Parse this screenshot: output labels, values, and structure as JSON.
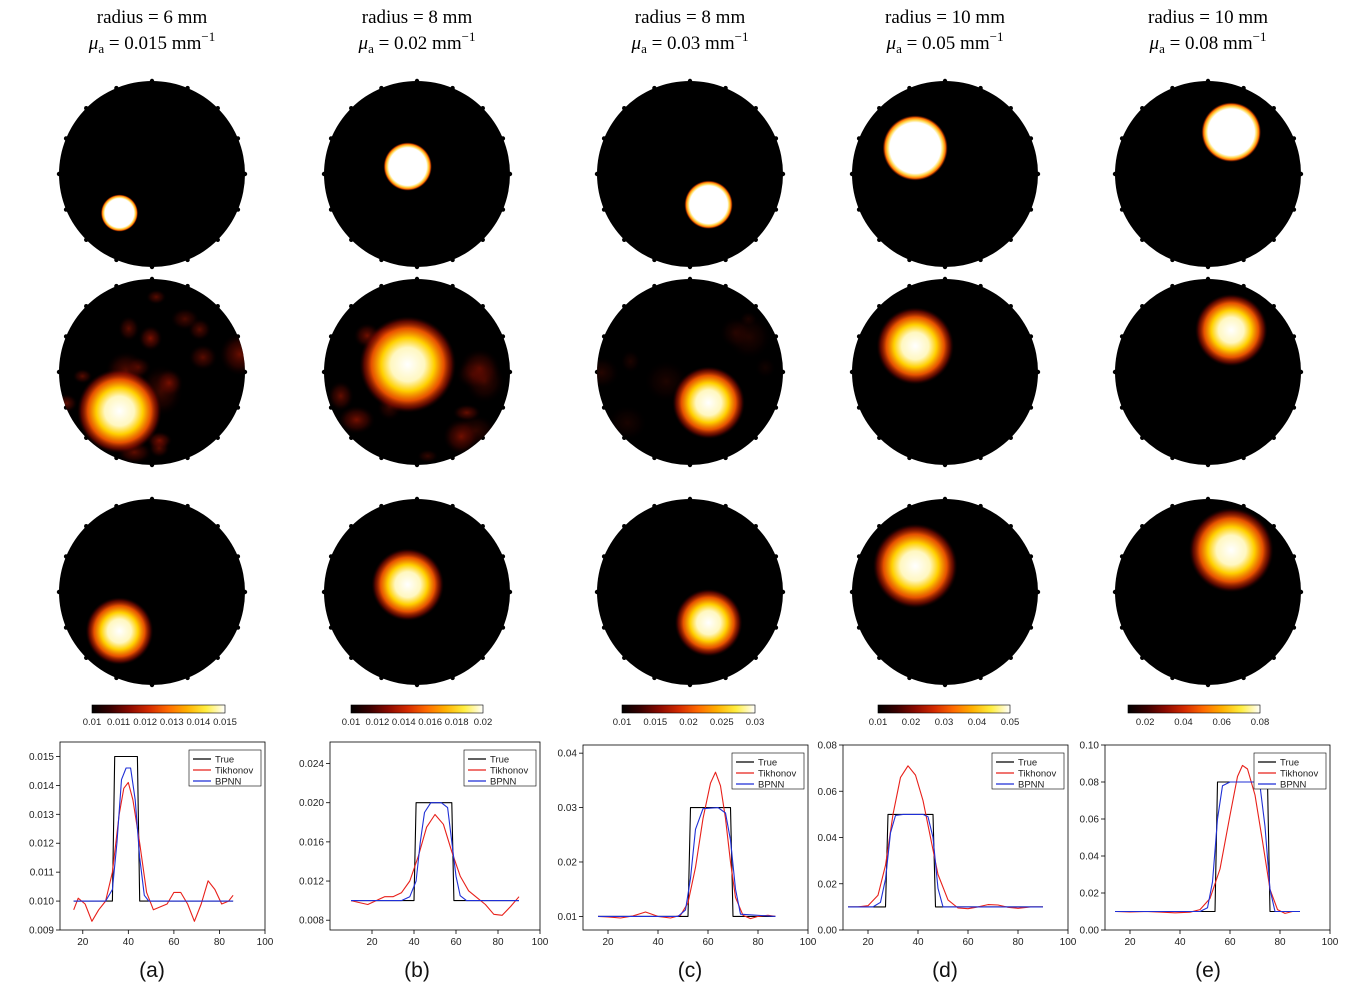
{
  "figure": {
    "colormap": [
      "#000000",
      "#3a0000",
      "#8c0a00",
      "#d42a00",
      "#ff6a00",
      "#ffb000",
      "#ffee40",
      "#ffffff"
    ],
    "row_labels": [],
    "panels": [
      {
        "label": "(a)",
        "title_radius": "radius = 6 mm",
        "title_mu_symbol": "μ",
        "title_mu_sub": "a",
        "title_mu_value": " = 0.015 mm",
        "title_mu_exp": "−1",
        "colorbar_ticks": [
          "0.01",
          "0.011",
          "0.012",
          "0.013",
          "0.014",
          "0.015"
        ]
      },
      {
        "label": "(b)",
        "title_radius": "radius = 8 mm",
        "title_mu_symbol": "μ",
        "title_mu_sub": "a",
        "title_mu_value": " = 0.02 mm",
        "title_mu_exp": "−1",
        "colorbar_ticks": [
          "0.01",
          "0.012",
          "0.014",
          "0.016",
          "0.018",
          "0.02"
        ]
      },
      {
        "label": "(c)",
        "title_radius": "radius = 8 mm",
        "title_mu_symbol": "μ",
        "title_mu_sub": "a",
        "title_mu_value": " = 0.03 mm",
        "title_mu_exp": "−1",
        "colorbar_ticks": [
          "0.01",
          "0.015",
          "0.02",
          "0.025",
          "0.03"
        ]
      },
      {
        "label": "(d)",
        "title_radius": "radius = 10 mm",
        "title_mu_symbol": "μ",
        "title_mu_sub": "a",
        "title_mu_value": " = 0.05 mm",
        "title_mu_exp": "−1",
        "colorbar_ticks": [
          "0.01",
          "0.02",
          "0.03",
          "0.04",
          "0.05"
        ]
      },
      {
        "label": "(e)",
        "title_radius": "radius = 10 mm",
        "title_mu_symbol": "μ",
        "title_mu_sub": "a",
        "title_mu_value": " = 0.08 mm",
        "title_mu_exp": "−1",
        "colorbar_ticks": [
          "0.02",
          "0.04",
          "0.06",
          "0.08"
        ]
      }
    ]
  },
  "chart_data": [
    {
      "type": "line",
      "panel": "(a)",
      "xlim": [
        10,
        100
      ],
      "ylim": [
        0.009,
        0.0155
      ],
      "xticks": [
        "20",
        "40",
        "60",
        "80",
        "100"
      ],
      "yticks": [
        "0.009",
        "0.010",
        "0.011",
        "0.012",
        "0.013",
        "0.014",
        "0.015"
      ],
      "legend": [
        "True",
        "Tikhonov",
        "BPNN"
      ],
      "legend_position": "top-right",
      "series": [
        {
          "name": "True",
          "color": "#000000",
          "x": [
            16,
            33,
            34,
            44,
            45,
            86
          ],
          "y": [
            0.01,
            0.01,
            0.015,
            0.015,
            0.01,
            0.01
          ]
        },
        {
          "name": "Tikhonov",
          "color": "#e8201a",
          "x": [
            16,
            18,
            21,
            24,
            27,
            30,
            33,
            36,
            38,
            40,
            42,
            45,
            48,
            51,
            54,
            57,
            60,
            63,
            66,
            69,
            72,
            75,
            78,
            81,
            84,
            86
          ],
          "y": [
            0.0097,
            0.0101,
            0.0099,
            0.0093,
            0.0097,
            0.01,
            0.011,
            0.013,
            0.0139,
            0.0141,
            0.0135,
            0.012,
            0.0103,
            0.0097,
            0.0098,
            0.0099,
            0.0103,
            0.0103,
            0.0099,
            0.0093,
            0.0099,
            0.0107,
            0.0104,
            0.0099,
            0.01,
            0.0102
          ]
        },
        {
          "name": "BPNN",
          "color": "#1f2fd6",
          "x": [
            16,
            30,
            33,
            35,
            37,
            39,
            41,
            43,
            45,
            47,
            49,
            86
          ],
          "y": [
            0.01,
            0.01,
            0.0104,
            0.012,
            0.0142,
            0.0146,
            0.0146,
            0.0135,
            0.0115,
            0.0102,
            0.01,
            0.01
          ]
        }
      ]
    },
    {
      "type": "line",
      "panel": "(b)",
      "xlim": [
        0,
        100
      ],
      "ylim": [
        0.007,
        0.0262
      ],
      "xticks": [
        "20",
        "40",
        "60",
        "80",
        "100"
      ],
      "yticks": [
        "0.008",
        "0.012",
        "0.016",
        "0.020",
        "0.024"
      ],
      "legend": [
        "True",
        "Tikhonov",
        "BPNN"
      ],
      "legend_position": "top-right",
      "series": [
        {
          "name": "True",
          "color": "#000000",
          "x": [
            10,
            40,
            41,
            58,
            59,
            90
          ],
          "y": [
            0.01,
            0.01,
            0.02,
            0.02,
            0.01,
            0.01
          ]
        },
        {
          "name": "Tikhonov",
          "color": "#e8201a",
          "x": [
            10,
            14,
            18,
            22,
            26,
            30,
            34,
            38,
            42,
            46,
            50,
            54,
            58,
            62,
            66,
            70,
            74,
            78,
            82,
            86,
            90
          ],
          "y": [
            0.01,
            0.0098,
            0.0096,
            0.01,
            0.0104,
            0.0104,
            0.0108,
            0.012,
            0.0145,
            0.0175,
            0.0188,
            0.0178,
            0.015,
            0.0125,
            0.011,
            0.0103,
            0.0096,
            0.0086,
            0.0085,
            0.0094,
            0.0104
          ]
        },
        {
          "name": "BPNN",
          "color": "#1f2fd6",
          "x": [
            10,
            34,
            38,
            41,
            43,
            45,
            48,
            53,
            56,
            58,
            60,
            62,
            65,
            90
          ],
          "y": [
            0.01,
            0.01,
            0.0104,
            0.012,
            0.016,
            0.019,
            0.02,
            0.02,
            0.0195,
            0.016,
            0.0125,
            0.0105,
            0.01,
            0.01
          ]
        }
      ]
    },
    {
      "type": "line",
      "panel": "(c)",
      "xlim": [
        10,
        100
      ],
      "ylim": [
        0.0075,
        0.0415
      ],
      "xticks": [
        "20",
        "40",
        "60",
        "80",
        "100"
      ],
      "yticks": [
        "0.01",
        "0.02",
        "0.03",
        "0.04"
      ],
      "legend": [
        "True",
        "Tikhonov",
        "BPNN"
      ],
      "legend_position": "top-right",
      "series": [
        {
          "name": "True",
          "color": "#000000",
          "x": [
            16,
            52,
            53,
            69,
            70,
            87
          ],
          "y": [
            0.01,
            0.01,
            0.03,
            0.03,
            0.01,
            0.01
          ]
        },
        {
          "name": "Tikhonov",
          "color": "#e8201a",
          "x": [
            16,
            20,
            25,
            30,
            35,
            40,
            45,
            49,
            52,
            55,
            58,
            61,
            63,
            65,
            67,
            69,
            71,
            74,
            77,
            80,
            84,
            87
          ],
          "y": [
            0.01,
            0.0099,
            0.0097,
            0.0101,
            0.0108,
            0.01,
            0.0097,
            0.0102,
            0.0125,
            0.019,
            0.028,
            0.0345,
            0.0365,
            0.034,
            0.028,
            0.02,
            0.0135,
            0.0102,
            0.0096,
            0.01,
            0.0102,
            0.01
          ]
        },
        {
          "name": "BPNN",
          "color": "#1f2fd6",
          "x": [
            16,
            48,
            51,
            53,
            55,
            58,
            64,
            67,
            69,
            71,
            73,
            87
          ],
          "y": [
            0.01,
            0.01,
            0.0112,
            0.017,
            0.026,
            0.0298,
            0.03,
            0.029,
            0.024,
            0.015,
            0.0104,
            0.01
          ]
        }
      ]
    },
    {
      "type": "line",
      "panel": "(d)",
      "xlim": [
        10,
        100
      ],
      "ylim": [
        0.0,
        0.08
      ],
      "xticks": [
        "20",
        "40",
        "60",
        "80",
        "100"
      ],
      "yticks": [
        "0.00",
        "0.02",
        "0.04",
        "0.06",
        "0.08"
      ],
      "legend": [
        "True",
        "Tikhonov",
        "BPNN"
      ],
      "legend_position": "top-right",
      "series": [
        {
          "name": "True",
          "color": "#000000",
          "x": [
            12,
            27,
            28,
            46,
            47,
            90
          ],
          "y": [
            0.01,
            0.01,
            0.05,
            0.05,
            0.01,
            0.01
          ]
        },
        {
          "name": "Tikhonov",
          "color": "#e8201a",
          "x": [
            12,
            16,
            20,
            24,
            27,
            30,
            33,
            36,
            39,
            42,
            45,
            48,
            52,
            56,
            60,
            64,
            68,
            72,
            76,
            80,
            85,
            90
          ],
          "y": [
            0.01,
            0.01,
            0.0105,
            0.015,
            0.028,
            0.05,
            0.066,
            0.071,
            0.067,
            0.056,
            0.04,
            0.024,
            0.013,
            0.0095,
            0.0092,
            0.01,
            0.011,
            0.0108,
            0.0098,
            0.0094,
            0.01,
            0.01
          ]
        },
        {
          "name": "BPNN",
          "color": "#1f2fd6",
          "x": [
            12,
            22,
            25,
            27,
            29,
            31,
            34,
            42,
            44,
            46,
            48,
            50,
            90
          ],
          "y": [
            0.01,
            0.01,
            0.012,
            0.022,
            0.042,
            0.0495,
            0.05,
            0.05,
            0.049,
            0.04,
            0.018,
            0.01,
            0.01
          ]
        }
      ]
    },
    {
      "type": "line",
      "panel": "(e)",
      "xlim": [
        10,
        100
      ],
      "ylim": [
        0.0,
        0.1
      ],
      "xticks": [
        "20",
        "40",
        "60",
        "80",
        "100"
      ],
      "yticks": [
        "0.00",
        "0.02",
        "0.04",
        "0.06",
        "0.08",
        "0.10"
      ],
      "legend": [
        "True",
        "Tikhonov",
        "BPNN"
      ],
      "legend_position": "top-right",
      "series": [
        {
          "name": "True",
          "color": "#000000",
          "x": [
            14,
            54,
            55,
            75,
            76,
            88
          ],
          "y": [
            0.01,
            0.01,
            0.08,
            0.08,
            0.01,
            0.01
          ]
        },
        {
          "name": "Tikhonov",
          "color": "#e8201a",
          "x": [
            14,
            20,
            26,
            32,
            38,
            44,
            48,
            52,
            56,
            60,
            63,
            65,
            67,
            70,
            73,
            76,
            79,
            82,
            85,
            88
          ],
          "y": [
            0.01,
            0.0098,
            0.01,
            0.0097,
            0.0093,
            0.0096,
            0.011,
            0.017,
            0.033,
            0.062,
            0.083,
            0.089,
            0.087,
            0.073,
            0.048,
            0.022,
            0.011,
            0.009,
            0.01,
            0.01
          ]
        },
        {
          "name": "BPNN",
          "color": "#1f2fd6",
          "x": [
            14,
            48,
            51,
            53,
            55,
            57,
            60,
            70,
            72,
            74,
            76,
            78,
            88
          ],
          "y": [
            0.01,
            0.01,
            0.012,
            0.026,
            0.06,
            0.078,
            0.08,
            0.08,
            0.078,
            0.056,
            0.022,
            0.01,
            0.01
          ]
        }
      ]
    }
  ]
}
